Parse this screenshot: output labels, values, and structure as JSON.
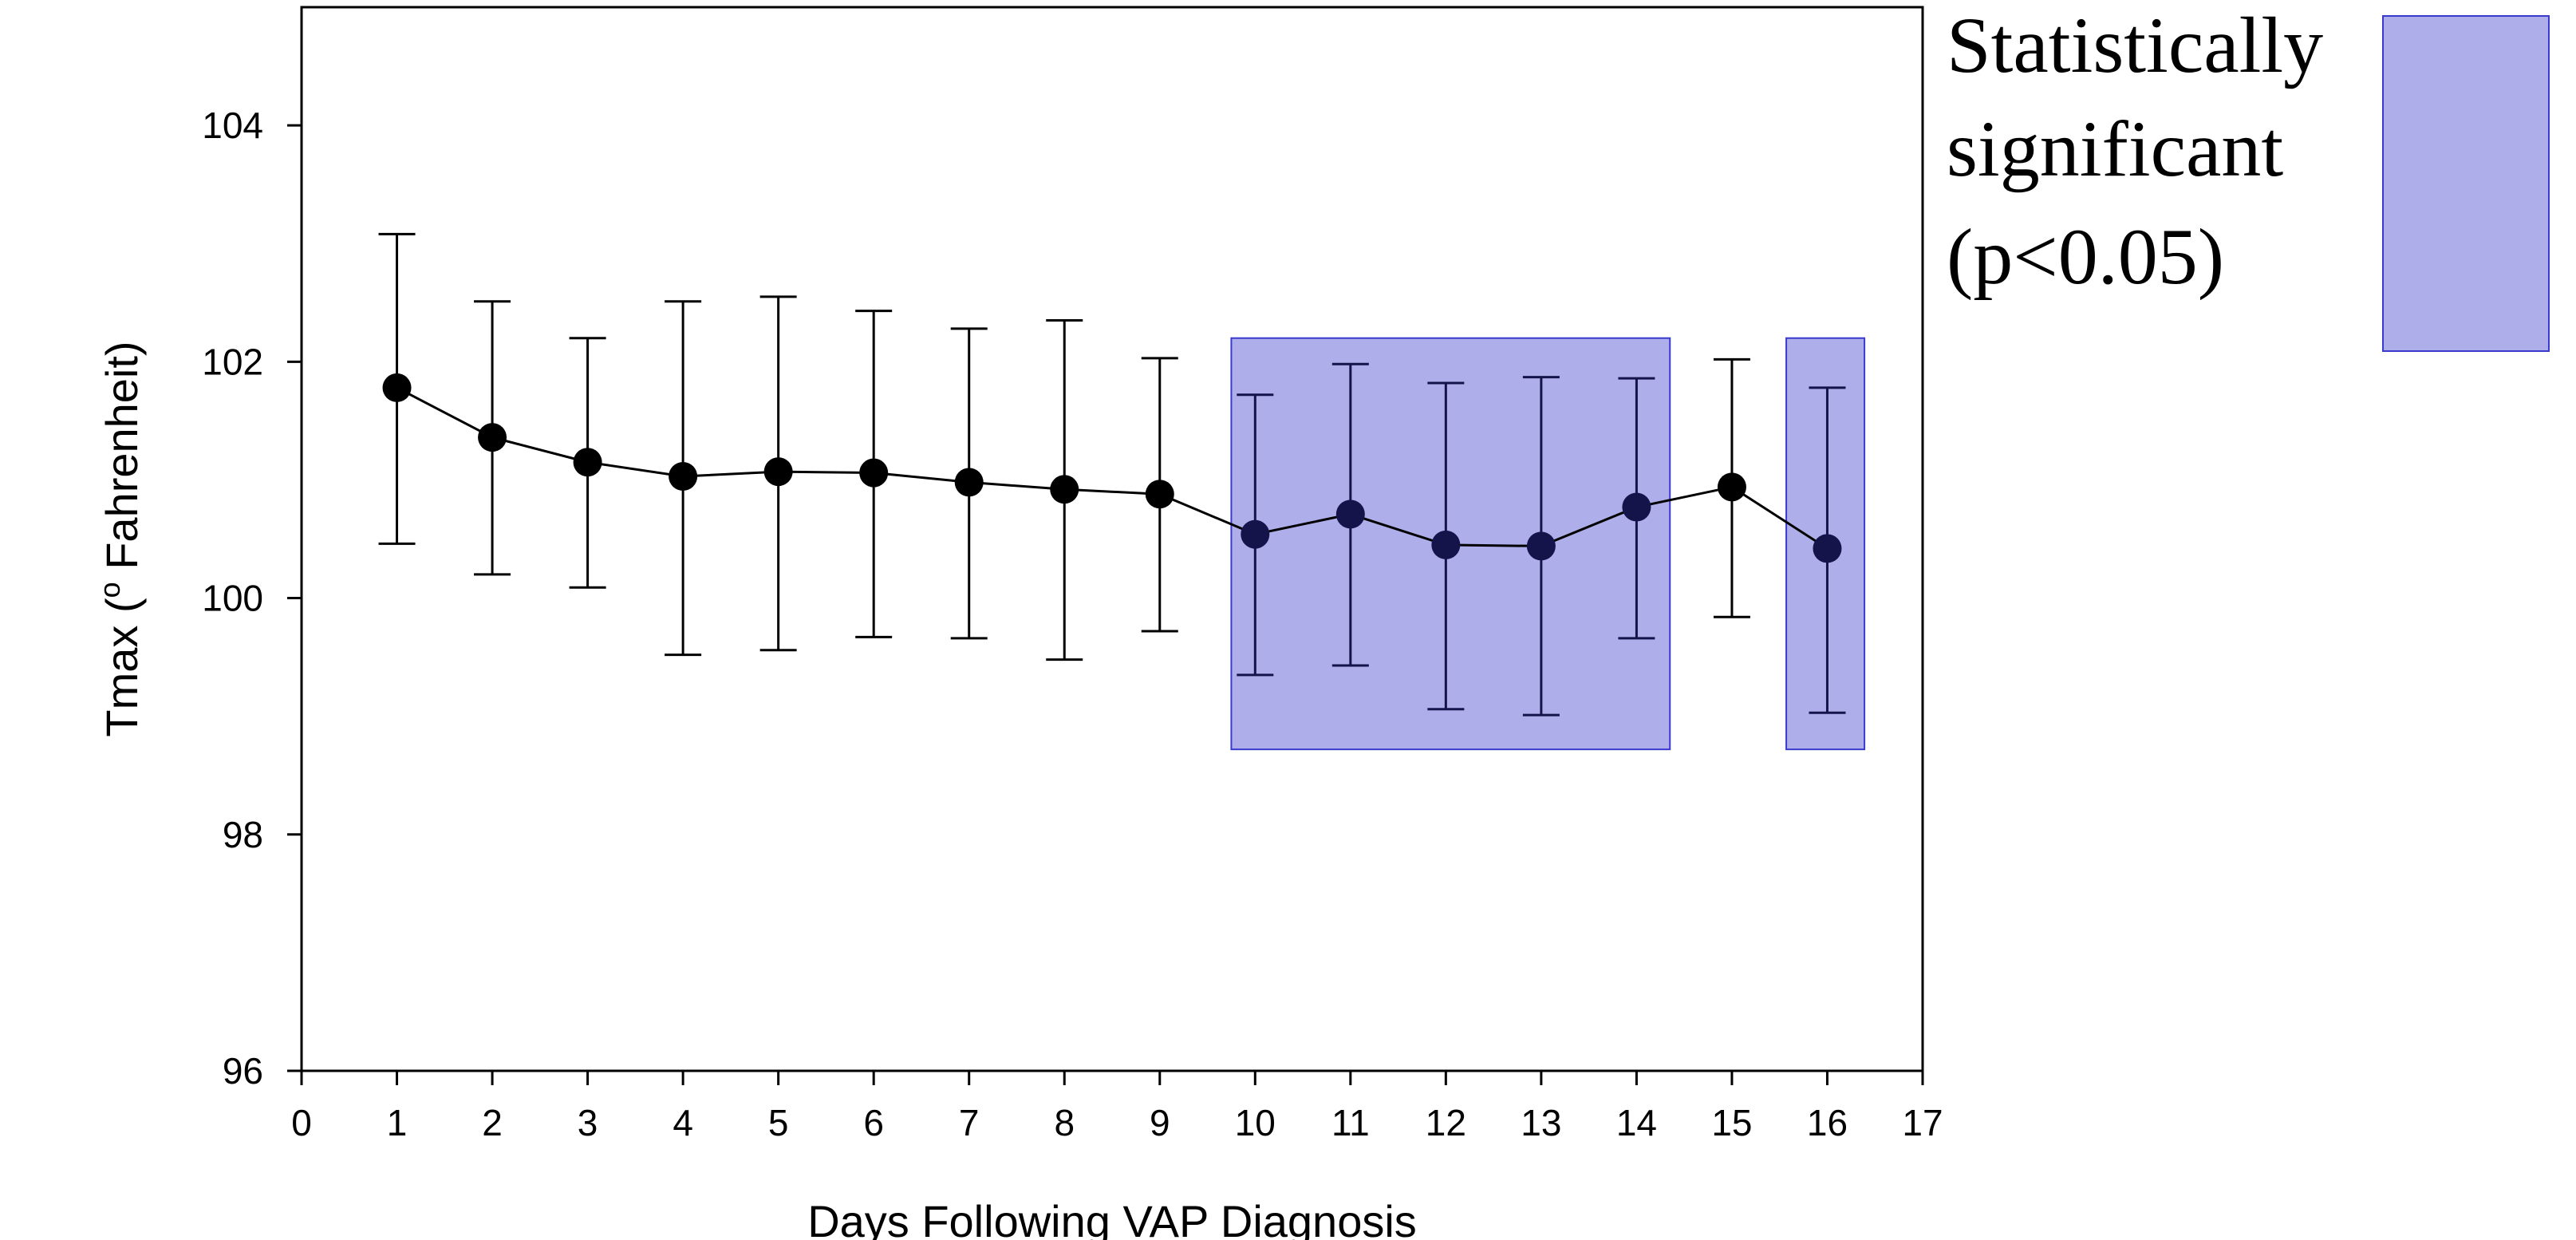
{
  "chart_data": {
    "type": "line",
    "title": "",
    "xlabel": "Days Following VAP Diagnosis",
    "ylabel": "Tmax (",
    "ylabel_superscript": "o",
    "ylabel_suffix": " Fahrenheit)",
    "xlim": [
      0,
      17
    ],
    "ylim": [
      96,
      105
    ],
    "x_ticks": [
      0,
      1,
      2,
      3,
      4,
      5,
      6,
      7,
      8,
      9,
      10,
      11,
      12,
      13,
      14,
      15,
      16,
      17
    ],
    "y_ticks": [
      96,
      98,
      100,
      102,
      104
    ],
    "grid": false,
    "series": [
      {
        "x": [
          1,
          2,
          3,
          4,
          5,
          6,
          7,
          8,
          9,
          10,
          11,
          12,
          13,
          14,
          15,
          16
        ],
        "y": [
          101.78,
          101.36,
          101.15,
          101.03,
          101.07,
          101.06,
          100.98,
          100.92,
          100.88,
          100.54,
          100.71,
          100.45,
          100.44,
          100.77,
          100.94,
          100.42
        ],
        "err_low": [
          100.46,
          100.2,
          100.09,
          99.52,
          99.56,
          99.67,
          99.66,
          99.48,
          99.72,
          99.35,
          99.43,
          99.06,
          99.01,
          99.66,
          99.84,
          99.03
        ],
        "err_high": [
          103.08,
          102.51,
          102.2,
          102.51,
          102.55,
          102.43,
          102.28,
          102.35,
          102.03,
          101.72,
          101.98,
          101.82,
          101.87,
          101.86,
          102.02,
          101.78
        ],
        "color": "#000000"
      }
    ],
    "shaded_regions": [
      {
        "x_from": 9.75,
        "x_to": 14.35,
        "y_from": 98.72,
        "y_to": 102.2
      },
      {
        "x_from": 15.57,
        "x_to": 16.39,
        "y_from": 98.72,
        "y_to": 102.2
      }
    ],
    "shade_color": "#aeaeea",
    "shade_border": "#3a3acc",
    "marker_color": "#000000",
    "marker_in_shade_color": "#14144a",
    "legend": {
      "placement": "right",
      "lines": [
        "Statistically",
        "significant",
        "(p<0.05)"
      ]
    }
  }
}
